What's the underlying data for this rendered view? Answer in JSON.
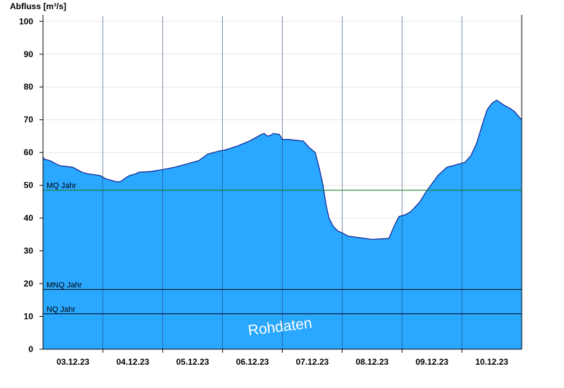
{
  "chart_data": {
    "type": "area",
    "title": "",
    "ylabel": "Abfluss [m³/s]",
    "xlabel": "",
    "ylim": [
      0,
      102
    ],
    "xlim": [
      0,
      8
    ],
    "yticks": [
      0,
      10,
      20,
      30,
      40,
      50,
      60,
      70,
      80,
      90,
      100
    ],
    "xtick_labels": [
      "03.12.23",
      "04.12.23",
      "05.12.23",
      "06.12.23",
      "07.12.23",
      "08.12.23",
      "09.12.23",
      "10.12.23"
    ],
    "grid": true,
    "fill_color": "#2aa7ff",
    "line_color": "#0d1f8f",
    "reference_lines": [
      {
        "label": "MQ Jahr",
        "value": 48.5,
        "color": "#1a7a1a"
      },
      {
        "label": "MNQ Jahr",
        "value": 18.2,
        "color": "#000000"
      },
      {
        "label": "NQ Jahr",
        "value": 10.8,
        "color": "#000000"
      }
    ],
    "watermark": "Rohdaten",
    "series": [
      {
        "x": [
          0,
          0.02,
          0.12,
          0.22,
          0.28,
          0.5,
          0.6,
          0.65,
          0.75,
          0.95,
          1.05,
          1.15,
          1.2,
          1.25,
          1.3,
          1.4,
          1.45,
          1.55,
          1.6,
          1.8,
          2.0,
          2.2,
          2.3,
          2.4,
          2.6,
          2.75,
          2.85,
          2.95,
          3.05,
          3.25,
          3.45,
          3.55,
          3.65,
          3.7,
          3.75,
          3.8,
          3.85,
          3.95,
          4.0,
          4.1,
          4.35,
          4.45,
          4.55,
          4.62,
          4.68,
          4.73,
          4.78,
          4.85,
          4.93,
          5.0,
          5.1,
          5.3,
          5.5,
          5.78,
          5.82,
          5.88,
          5.95,
          6.05,
          6.15,
          6.3,
          6.4,
          6.5,
          6.6,
          6.75,
          6.85,
          6.95,
          7.05,
          7.15,
          7.25,
          7.35,
          7.42,
          7.5,
          7.58,
          7.7,
          7.8,
          7.88,
          7.95,
          8.0
        ],
        "y": [
          58.7,
          58.0,
          57.5,
          56.5,
          56.0,
          55.5,
          54.5,
          54.0,
          53.5,
          53.0,
          52.0,
          51.5,
          51.2,
          51.0,
          51.2,
          52.5,
          53.0,
          53.5,
          54.0,
          54.2,
          54.8,
          55.5,
          56.0,
          56.5,
          57.5,
          59.5,
          60.0,
          60.5,
          60.8,
          62.0,
          63.5,
          64.5,
          65.5,
          65.8,
          65.0,
          65.2,
          65.8,
          65.5,
          64.0,
          64.0,
          63.5,
          61.5,
          60.0,
          55.0,
          50.0,
          44.0,
          40.0,
          37.5,
          36.0,
          35.5,
          34.5,
          34.0,
          33.5,
          33.8,
          35.5,
          38.0,
          40.5,
          41.0,
          42.0,
          45.0,
          48.0,
          50.5,
          53.0,
          55.5,
          56.0,
          56.5,
          57.0,
          59.0,
          63.0,
          69.0,
          73.0,
          75.0,
          76.0,
          74.5,
          73.5,
          72.5,
          71.0,
          70.0
        ]
      }
    ]
  }
}
